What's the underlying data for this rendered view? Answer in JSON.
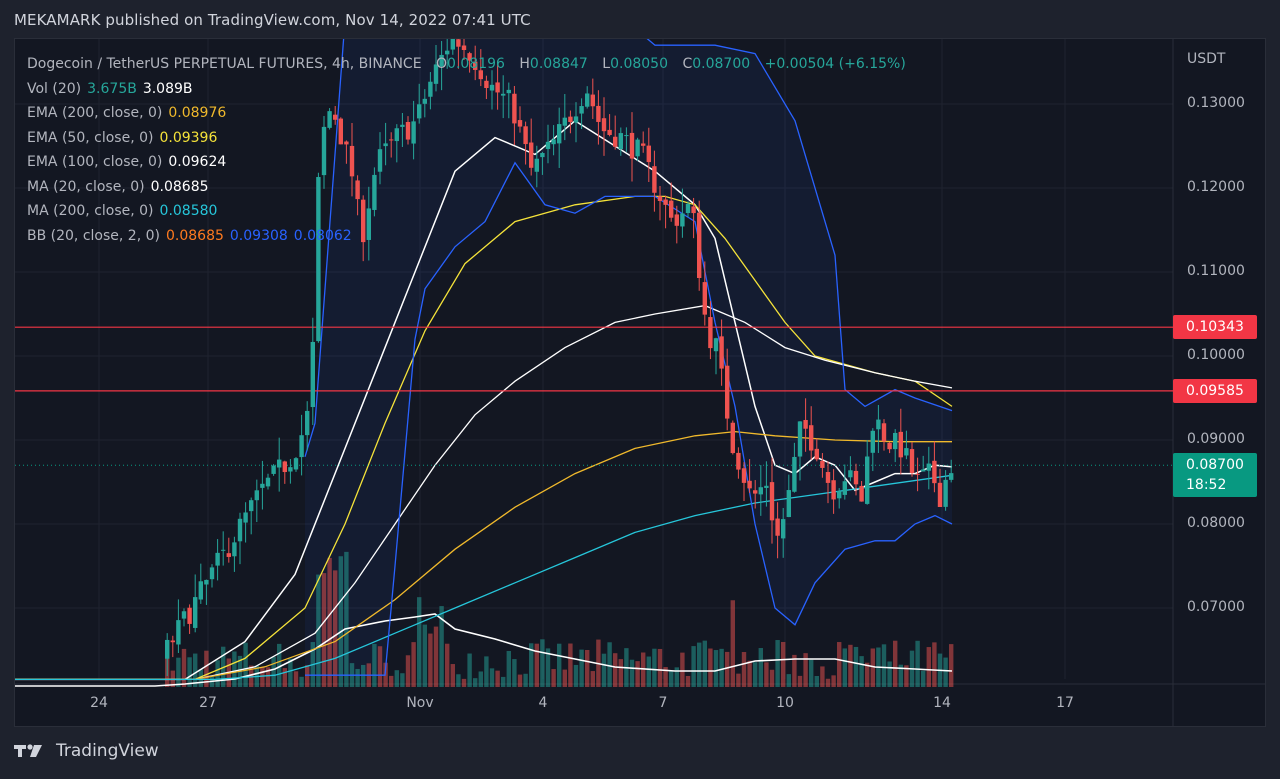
{
  "publisher_line": "MEKAMARK published on TradingView.com, Nov 14, 2022 07:41 UTC",
  "symbol": {
    "title": "Dogecoin / TetherUS PERPETUAL FUTURES, 4h, BINANCE",
    "open_label": "O",
    "open": "0.08196",
    "high_label": "H",
    "high": "0.08847",
    "low_label": "L",
    "low": "0.08050",
    "close_label": "C",
    "close": "0.08700",
    "change": "+0.00504 (+6.15%)"
  },
  "indicators": [
    {
      "label": "Vol (20)",
      "values": [
        {
          "v": "3.675B",
          "color": "#26a69a"
        },
        {
          "v": "3.089B",
          "color": "#ffffff"
        }
      ]
    },
    {
      "label": "EMA (200, close, 0)",
      "values": [
        {
          "v": "0.08976",
          "color": "#f0b92c"
        }
      ]
    },
    {
      "label": "EMA (50, close, 0)",
      "values": [
        {
          "v": "0.09396",
          "color": "#f5e33a"
        }
      ]
    },
    {
      "label": "EMA (100, close, 0)",
      "values": [
        {
          "v": "0.09624",
          "color": "#ffffff"
        }
      ]
    },
    {
      "label": "MA (20, close, 0)",
      "values": [
        {
          "v": "0.08685",
          "color": "#ffffff"
        }
      ]
    },
    {
      "label": "MA (200, close, 0)",
      "values": [
        {
          "v": "0.08580",
          "color": "#26c6da"
        }
      ]
    },
    {
      "label": "BB (20, close, 2, 0)",
      "values": [
        {
          "v": "0.08685",
          "color": "#ff7a1f"
        },
        {
          "v": "0.09308",
          "color": "#2962ff"
        },
        {
          "v": "0.08062",
          "color": "#2962ff"
        }
      ]
    }
  ],
  "price_axis": {
    "currency": "USDT",
    "ticks": [
      "0.13000",
      "0.12000",
      "0.11000",
      "0.10000",
      "0.09000",
      "0.08000",
      "0.07000"
    ],
    "horizontal_lines": [
      {
        "price": "0.10343",
        "color": "#f23645"
      },
      {
        "price": "0.09585",
        "color": "#f23645"
      }
    ],
    "last_price": {
      "price": "0.08700",
      "countdown": "18:52",
      "color": "#089981"
    }
  },
  "time_axis": {
    "ticks": [
      "24",
      "27",
      "Nov",
      "4",
      "7",
      "10",
      "14",
      "17"
    ]
  },
  "colors": {
    "up": "#26a69a",
    "down": "#ef5350",
    "bb": "#2962ff",
    "ema200": "#f0b92c",
    "ema50": "#f5e33a",
    "ema100": "#ffffff",
    "ma20": "#ffffff",
    "ma200": "#26c6da",
    "background": "#131722"
  },
  "brand": "TradingView",
  "chart_data": {
    "type": "candlestick",
    "title": "Dogecoin / TetherUS PERPETUAL FUTURES, 4h, BINANCE",
    "xlabel": "",
    "ylabel": "USDT",
    "ylim": [
      0.062,
      0.14
    ],
    "x_ticks": [
      "24",
      "27",
      "Nov",
      "4",
      "7",
      "10",
      "14",
      "17"
    ],
    "y_ticks": [
      0.07,
      0.08,
      0.09,
      0.1,
      0.11,
      0.12,
      0.13
    ],
    "grid": true,
    "legend_position": "top-left",
    "ohlc_last": {
      "open": 0.08196,
      "high": 0.08847,
      "low": 0.0805,
      "close": 0.087,
      "change": 0.00504,
      "change_pct": 6.15
    },
    "series": [
      {
        "name": "EMA 200",
        "last": 0.08976
      },
      {
        "name": "EMA 50",
        "last": 0.09396
      },
      {
        "name": "EMA 100",
        "last": 0.09624
      },
      {
        "name": "MA 20",
        "last": 0.08685
      },
      {
        "name": "MA 200",
        "last": 0.0858
      },
      {
        "name": "BB basis",
        "last": 0.08685
      },
      {
        "name": "BB upper",
        "last": 0.09308
      },
      {
        "name": "BB lower",
        "last": 0.08062
      },
      {
        "name": "Volume",
        "last": "3.675B",
        "ma20": "3.089B"
      }
    ],
    "horizontal_lines": [
      0.10343,
      0.09585
    ],
    "approx_price_path": {
      "dates": [
        "Oct 24",
        "Oct 26",
        "Oct 27",
        "Oct 28",
        "Oct 29",
        "Oct 30",
        "Nov 1",
        "Nov 2",
        "Nov 4",
        "Nov 5",
        "Nov 7",
        "Nov 8",
        "Nov 9",
        "Nov 10",
        "Nov 11",
        "Nov 12",
        "Nov 13",
        "Nov 14"
      ],
      "close": [
        0.061,
        0.063,
        0.075,
        0.082,
        0.089,
        0.128,
        0.138,
        0.129,
        0.121,
        0.129,
        0.118,
        0.111,
        0.083,
        0.075,
        0.088,
        0.084,
        0.091,
        0.087
      ]
    }
  }
}
